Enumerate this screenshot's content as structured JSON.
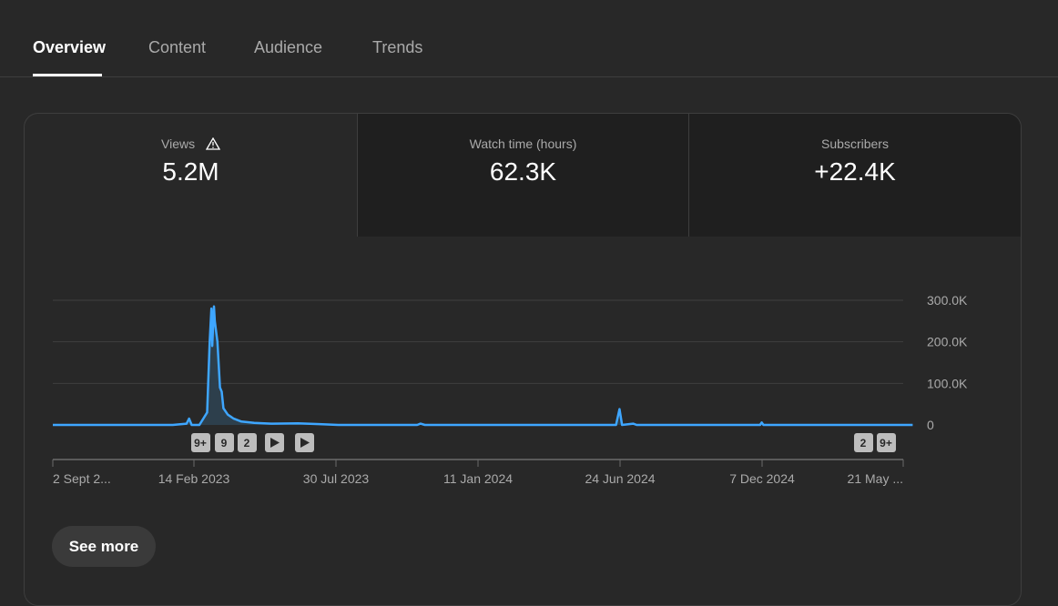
{
  "tabs": [
    {
      "label": "Overview",
      "active": true
    },
    {
      "label": "Content",
      "active": false
    },
    {
      "label": "Audience",
      "active": false
    },
    {
      "label": "Trends",
      "active": false
    }
  ],
  "metrics": [
    {
      "label": "Views",
      "value": "5.2M",
      "icon": "warning-icon"
    },
    {
      "label": "Watch time (hours)",
      "value": "62.3K"
    },
    {
      "label": "Subscribers",
      "value": "+22.4K"
    }
  ],
  "chart_data": {
    "type": "area",
    "series": [
      {
        "values": [
          [
            "2022-09-02",
            0
          ],
          [
            "2023-01-20",
            0
          ],
          [
            "2023-02-05",
            3000
          ],
          [
            "2023-02-08",
            15000
          ],
          [
            "2023-02-11",
            0
          ],
          [
            "2023-02-20",
            0
          ],
          [
            "2023-03-01",
            30000
          ],
          [
            "2023-03-04",
            200000
          ],
          [
            "2023-03-06",
            280000
          ],
          [
            "2023-03-07",
            190000
          ],
          [
            "2023-03-09",
            285000
          ],
          [
            "2023-03-10",
            250000
          ],
          [
            "2023-03-13",
            200000
          ],
          [
            "2023-03-16",
            90000
          ],
          [
            "2023-03-18",
            80000
          ],
          [
            "2023-03-20",
            40000
          ],
          [
            "2023-03-25",
            25000
          ],
          [
            "2023-04-01",
            15000
          ],
          [
            "2023-04-10",
            8000
          ],
          [
            "2023-04-25",
            5000
          ],
          [
            "2023-05-15",
            3000
          ],
          [
            "2023-06-15",
            4000
          ],
          [
            "2023-07-10",
            2000
          ],
          [
            "2023-08-01",
            0
          ],
          [
            "2023-11-01",
            0
          ],
          [
            "2023-11-05",
            3000
          ],
          [
            "2023-11-10",
            0
          ],
          [
            "2024-06-20",
            0
          ],
          [
            "2024-06-24",
            38000
          ],
          [
            "2024-06-27",
            0
          ],
          [
            "2024-07-10",
            3000
          ],
          [
            "2024-07-14",
            0
          ],
          [
            "2024-12-05",
            0
          ],
          [
            "2024-12-07",
            6000
          ],
          [
            "2024-12-09",
            0
          ],
          [
            "2025-06-01",
            0
          ]
        ]
      }
    ],
    "x_ticks": [
      "2 Sept 2...",
      "14 Feb 2023",
      "30 Jul 2023",
      "11 Jan 2024",
      "24 Jun 2024",
      "7 Dec 2024",
      "21 May ..."
    ],
    "y_ticks": [
      "300.0K",
      "200.0K",
      "100.0K",
      "0"
    ],
    "ylim": [
      0,
      300000
    ],
    "grid": true,
    "markers_left": [
      "9+",
      "9",
      "2",
      "play",
      "play"
    ],
    "markers_right": [
      "2",
      "9+"
    ],
    "line_color": "#3ea6ff"
  },
  "see_more_label": "See more"
}
